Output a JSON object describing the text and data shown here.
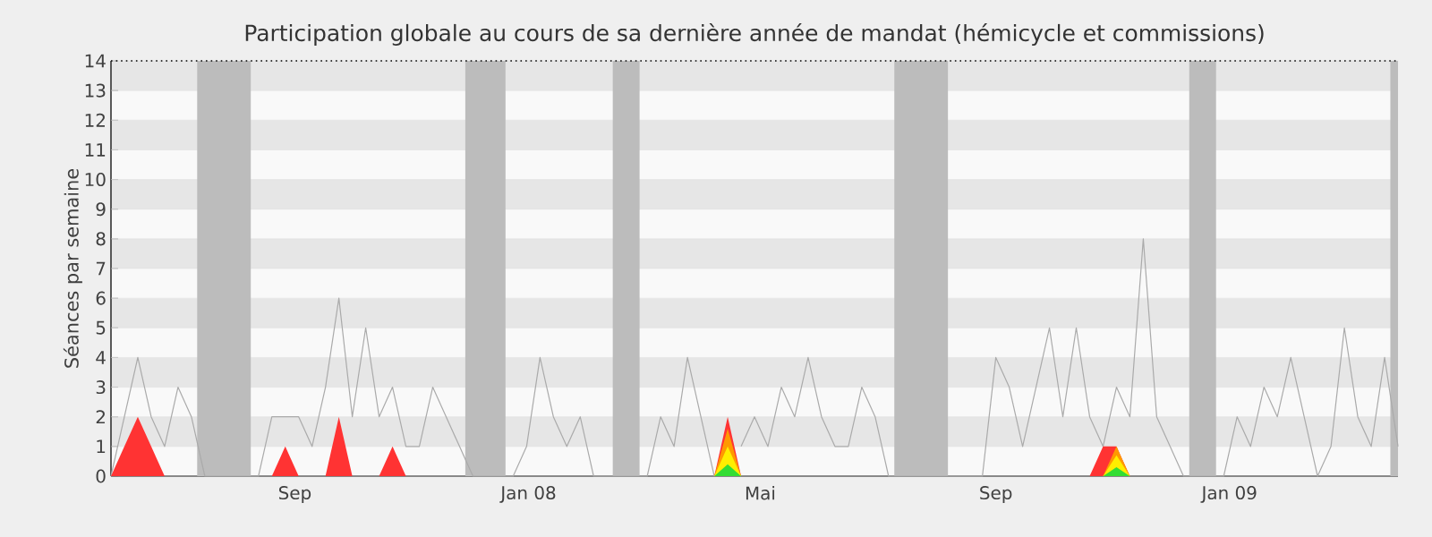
{
  "chart_data": {
    "type": "line",
    "title": "Participation globale au cours de sa dernière année de mandat (hémicycle et commissions)",
    "ylabel": "Séances par semaine",
    "x": [
      "2007-05-28",
      "2007-06-04",
      "2007-06-11",
      "2007-06-18",
      "2007-06-25",
      "2007-07-02",
      "2007-07-09",
      "2007-07-16",
      "2007-07-23",
      "2007-07-30",
      "2007-08-06",
      "2007-08-13",
      "2007-08-20",
      "2007-08-27",
      "2007-09-03",
      "2007-09-10",
      "2007-09-17",
      "2007-09-24",
      "2007-10-01",
      "2007-10-08",
      "2007-10-15",
      "2007-10-22",
      "2007-10-29",
      "2007-11-05",
      "2007-11-12",
      "2007-11-19",
      "2007-11-26",
      "2007-12-03",
      "2007-12-10",
      "2007-12-17",
      "2007-12-24",
      "2007-12-31",
      "2008-01-07",
      "2008-01-14",
      "2008-01-21",
      "2008-01-28",
      "2008-02-04",
      "2008-02-11",
      "2008-02-18",
      "2008-02-25",
      "2008-03-03",
      "2008-03-10",
      "2008-03-17",
      "2008-03-24",
      "2008-03-31",
      "2008-04-07",
      "2008-04-14",
      "2008-04-21",
      "2008-04-28",
      "2008-05-05",
      "2008-05-12",
      "2008-05-19",
      "2008-05-26",
      "2008-06-02",
      "2008-06-09",
      "2008-06-16",
      "2008-06-23",
      "2008-06-30",
      "2008-07-07",
      "2008-07-14",
      "2008-07-21",
      "2008-07-28",
      "2008-08-04",
      "2008-08-11",
      "2008-08-18",
      "2008-08-25",
      "2008-09-01",
      "2008-09-08",
      "2008-09-15",
      "2008-09-22",
      "2008-09-29",
      "2008-10-06",
      "2008-10-13",
      "2008-10-20",
      "2008-10-27",
      "2008-11-03",
      "2008-11-10",
      "2008-11-17",
      "2008-11-24",
      "2008-12-01",
      "2008-12-08",
      "2008-12-15",
      "2008-12-22",
      "2008-12-29",
      "2009-01-05",
      "2009-01-12",
      "2009-01-19",
      "2009-01-26",
      "2009-02-02",
      "2009-02-09",
      "2009-02-16",
      "2009-02-23",
      "2009-03-02",
      "2009-03-09",
      "2009-03-16",
      "2009-03-23",
      "2009-03-30"
    ],
    "xlim": [
      "2007-05-28",
      "2009-03-30"
    ],
    "xticks": [
      {
        "value": "2007-09-01",
        "label": "Sep"
      },
      {
        "value": "2008-01-01",
        "label": "Jan 08"
      },
      {
        "value": "2008-05-01",
        "label": "Mai"
      },
      {
        "value": "2008-09-01",
        "label": "Sep"
      },
      {
        "value": "2009-01-01",
        "label": "Jan 09"
      }
    ],
    "ylim": [
      0,
      14
    ],
    "yticks": [
      0,
      1,
      2,
      3,
      4,
      5,
      6,
      7,
      8,
      9,
      10,
      11,
      12,
      13,
      14
    ],
    "grid": "y",
    "bands": [
      {
        "axis": "x",
        "from": "2007-07-12",
        "to": "2007-08-09",
        "color": "#bcbcbc"
      },
      {
        "axis": "x",
        "from": "2007-11-29",
        "to": "2007-12-20",
        "color": "#bcbcbc"
      },
      {
        "axis": "x",
        "from": "2008-02-14",
        "to": "2008-02-28",
        "color": "#bcbcbc"
      },
      {
        "axis": "x",
        "from": "2008-07-10",
        "to": "2008-08-07",
        "color": "#bcbcbc"
      },
      {
        "axis": "x",
        "from": "2008-12-11",
        "to": "2008-12-25",
        "color": "#bcbcbc"
      },
      {
        "axis": "x",
        "from": "2009-03-26",
        "to": "2009-03-30",
        "color": "#bcbcbc"
      }
    ],
    "series": [
      {
        "color": "#aaaaaa",
        "values": [
          0,
          2,
          4,
          2,
          1,
          3,
          2,
          0,
          0,
          0,
          0,
          0,
          2,
          2,
          2,
          1,
          3,
          6,
          2,
          5,
          2,
          3,
          1,
          1,
          3,
          2,
          1,
          0,
          0,
          0,
          0,
          1,
          4,
          2,
          1,
          2,
          0,
          0,
          0,
          0,
          0,
          2,
          1,
          4,
          2,
          0,
          null,
          1,
          2,
          1,
          3,
          2,
          4,
          2,
          1,
          1,
          3,
          2,
          0,
          0,
          0,
          0,
          0,
          0,
          0,
          0,
          4,
          3,
          1,
          3,
          5,
          2,
          5,
          2,
          1,
          3,
          2,
          8,
          2,
          1,
          0,
          0,
          0,
          0,
          2,
          1,
          3,
          2,
          4,
          2,
          0,
          1,
          5,
          2,
          1,
          4,
          1
        ]
      },
      {
        "type": "area",
        "color": "#ff3333",
        "values": [
          0,
          1,
          2,
          1,
          0,
          0,
          0,
          0,
          0,
          0,
          0,
          0,
          0,
          1,
          0,
          0,
          0,
          2,
          0,
          0,
          0,
          1,
          0,
          0,
          0,
          0,
          0,
          0,
          0,
          0,
          0,
          0,
          0,
          0,
          0,
          0,
          0,
          0,
          0,
          0,
          0,
          0,
          0,
          0,
          0,
          0,
          2,
          0,
          0,
          0,
          0,
          0,
          0,
          0,
          0,
          0,
          0,
          0,
          0,
          0,
          0,
          0,
          0,
          0,
          0,
          0,
          0,
          0,
          0,
          0,
          0,
          0,
          0,
          0,
          1,
          1,
          0,
          0,
          0,
          0,
          0,
          0,
          0,
          0,
          0,
          0,
          0,
          0,
          0,
          0,
          0,
          0,
          0,
          0,
          0,
          0,
          0
        ]
      },
      {
        "type": "area",
        "color": "#ff9900",
        "values": [
          0,
          0,
          0,
          0,
          0,
          0,
          0,
          0,
          0,
          0,
          0,
          0,
          0,
          0,
          0,
          0,
          0,
          0,
          0,
          0,
          0,
          0,
          0,
          0,
          0,
          0,
          0,
          0,
          0,
          0,
          0,
          0,
          0,
          0,
          0,
          0,
          0,
          0,
          0,
          0,
          0,
          0,
          0,
          0,
          0,
          0,
          1.6,
          0,
          0,
          0,
          0,
          0,
          0,
          0,
          0,
          0,
          0,
          0,
          0,
          0,
          0,
          0,
          0,
          0,
          0,
          0,
          0,
          0,
          0,
          0,
          0,
          0,
          0,
          0,
          0,
          1,
          0,
          0,
          0,
          0,
          0,
          0,
          0,
          0,
          0,
          0,
          0,
          0,
          0,
          0,
          0,
          0,
          0,
          0,
          0,
          0,
          0
        ]
      },
      {
        "type": "area",
        "color": "#ffee00",
        "values": [
          0,
          0,
          0,
          0,
          0,
          0,
          0,
          0,
          0,
          0,
          0,
          0,
          0,
          0,
          0,
          0,
          0,
          0,
          0,
          0,
          0,
          0,
          0,
          0,
          0,
          0,
          0,
          0,
          0,
          0,
          0,
          0,
          0,
          0,
          0,
          0,
          0,
          0,
          0,
          0,
          0,
          0,
          0,
          0,
          0,
          0,
          1,
          0,
          0,
          0,
          0,
          0,
          0,
          0,
          0,
          0,
          0,
          0,
          0,
          0,
          0,
          0,
          0,
          0,
          0,
          0,
          0,
          0,
          0,
          0,
          0,
          0,
          0,
          0,
          0,
          0.7,
          0,
          0,
          0,
          0,
          0,
          0,
          0,
          0,
          0,
          0,
          0,
          0,
          0,
          0,
          0,
          0,
          0,
          0,
          0,
          0,
          0
        ]
      },
      {
        "type": "area",
        "color": "#33dd33",
        "values": [
          0,
          0,
          0,
          0,
          0,
          0,
          0,
          0,
          0,
          0,
          0,
          0,
          0,
          0,
          0,
          0,
          0,
          0,
          0,
          0,
          0,
          0,
          0,
          0,
          0,
          0,
          0,
          0,
          0,
          0,
          0,
          0,
          0,
          0,
          0,
          0,
          0,
          0,
          0,
          0,
          0,
          0,
          0,
          0,
          0,
          0,
          0.4,
          0,
          0,
          0,
          0,
          0,
          0,
          0,
          0,
          0,
          0,
          0,
          0,
          0,
          0,
          0,
          0,
          0,
          0,
          0,
          0,
          0,
          0,
          0,
          0,
          0,
          0,
          0,
          0,
          0.3,
          0,
          0,
          0,
          0,
          0,
          0,
          0,
          0,
          0,
          0,
          0,
          0,
          0,
          0,
          0,
          0,
          0,
          0,
          0,
          0,
          0
        ]
      }
    ]
  }
}
